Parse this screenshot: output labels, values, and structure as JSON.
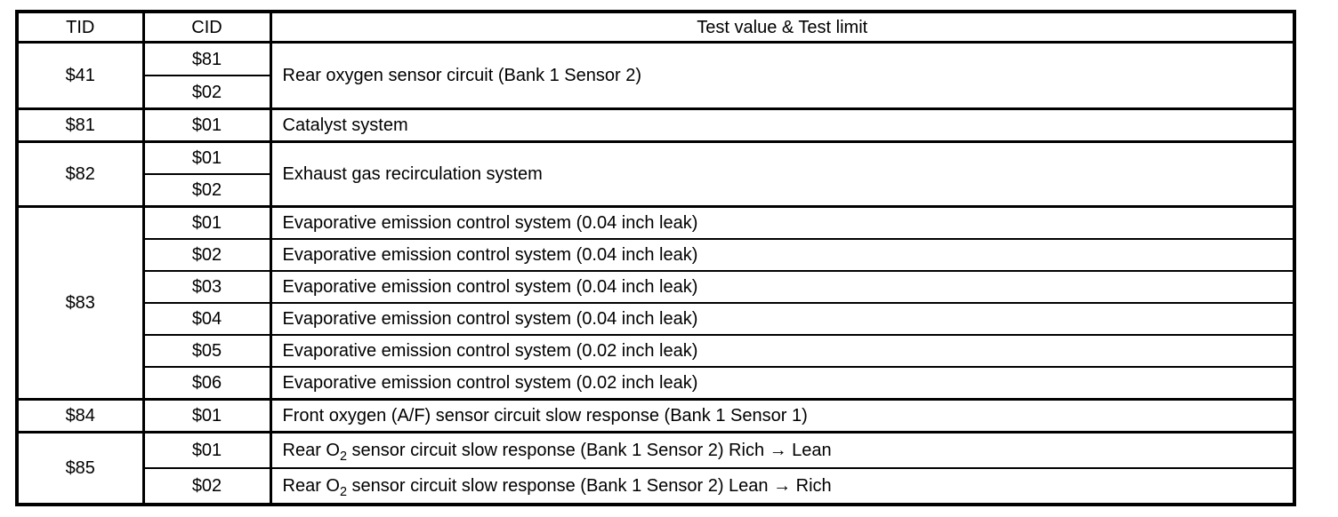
{
  "table": {
    "headers": {
      "tid": "TID",
      "cid": "CID",
      "test": "Test value & Test limit"
    },
    "groups": [
      {
        "tid": "$41",
        "rows": [
          {
            "cid": "$81"
          },
          {
            "cid": "$02"
          }
        ],
        "shared_desc": "Rear oxygen sensor circuit (Bank 1 Sensor 2)"
      },
      {
        "tid": "$81",
        "rows": [
          {
            "cid": "$01",
            "desc": "Catalyst system"
          }
        ]
      },
      {
        "tid": "$82",
        "rows": [
          {
            "cid": "$01"
          },
          {
            "cid": "$02"
          }
        ],
        "shared_desc": "Exhaust gas recirculation system"
      },
      {
        "tid": "$83",
        "rows": [
          {
            "cid": "$01",
            "desc": "Evaporative emission control system (0.04 inch leak)"
          },
          {
            "cid": "$02",
            "desc": "Evaporative emission control system (0.04 inch leak)"
          },
          {
            "cid": "$03",
            "desc": "Evaporative emission control system (0.04 inch leak)"
          },
          {
            "cid": "$04",
            "desc": "Evaporative emission control system (0.04 inch leak)"
          },
          {
            "cid": "$05",
            "desc": "Evaporative emission control system (0.02 inch leak)"
          },
          {
            "cid": "$06",
            "desc": "Evaporative emission control system (0.02 inch leak)"
          }
        ]
      },
      {
        "tid": "$84",
        "rows": [
          {
            "cid": "$01",
            "desc": "Front oxygen (A/F) sensor circuit slow response (Bank 1 Sensor 1)"
          }
        ]
      },
      {
        "tid": "$85",
        "rows": [
          {
            "cid": "$01",
            "desc_pre": "Rear O",
            "desc_sub": "2",
            "desc_post": " sensor circuit slow response (Bank 1 Sensor 2) Rich → Lean"
          },
          {
            "cid": "$02",
            "desc_pre": "Rear O",
            "desc_sub": "2",
            "desc_post": " sensor circuit slow response (Bank 1 Sensor 2) Lean → Rich"
          }
        ]
      }
    ]
  },
  "colors": {
    "ink": "#000000",
    "paper": "#ffffff"
  }
}
